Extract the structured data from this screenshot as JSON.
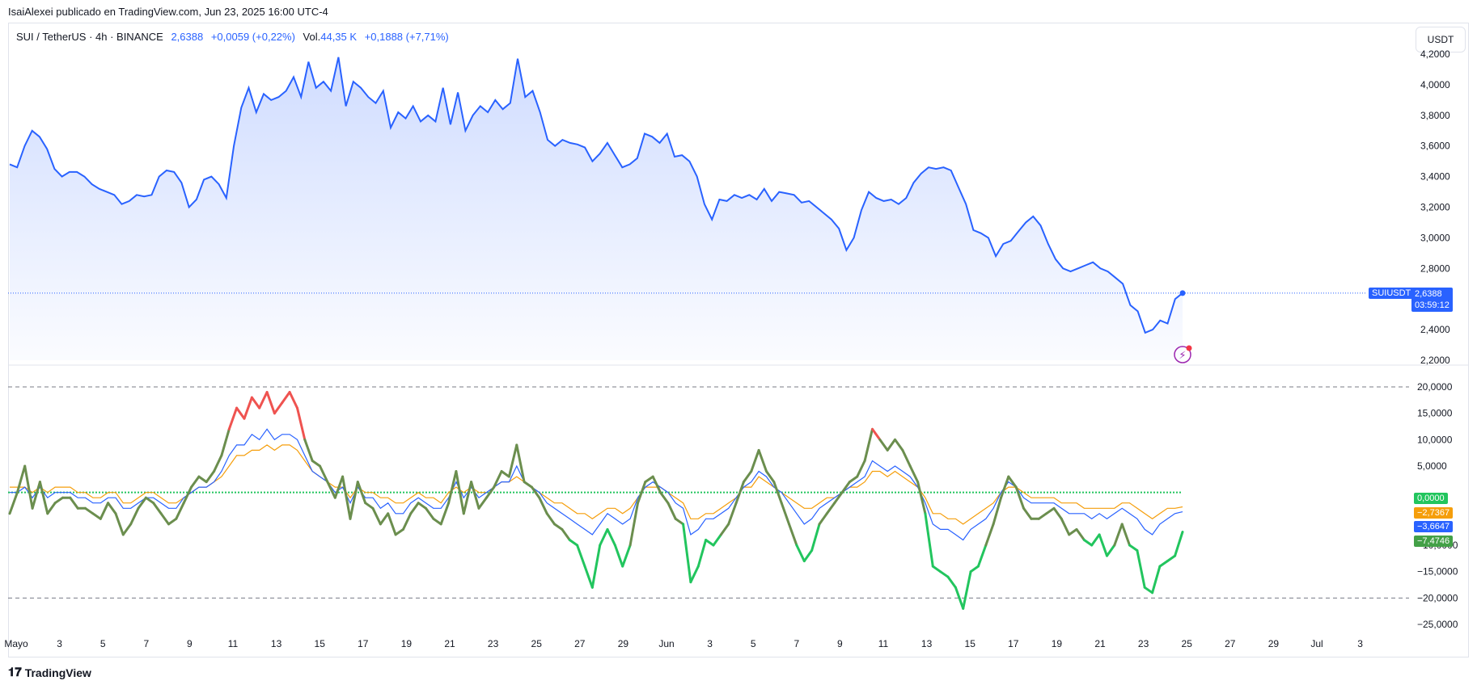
{
  "header": {
    "caption": "IsaiAlexei publicado en TradingView.com, Jun 23, 2025 16:00 UTC-4",
    "symbol": "SUI / TetherUS · 4h · BINANCE",
    "price": "2,6388",
    "change": "+0,0059 (+0,22%)",
    "vol_label": "Vol.",
    "vol_value": "44,35 K",
    "vol_change": "+0,1888 (+7,71%)",
    "currency": "USDT"
  },
  "price_badge": {
    "symbol": "SUIUSDT",
    "price": "2,6388",
    "countdown": "03:59:12"
  },
  "osc_badges": [
    {
      "value": "0,0000",
      "color": "#22c55e"
    },
    {
      "value": "−2,7367",
      "color": "#f59e0b"
    },
    {
      "value": "−3,6647",
      "color": "#2962ff"
    },
    {
      "value": "−7,4746",
      "color": "#43a047"
    }
  ],
  "footer": {
    "brand": "TradingView"
  },
  "chart_data": [
    {
      "type": "area",
      "series": [
        {
          "name": "SUIUSDT",
          "values": [
            3.48,
            3.46,
            3.6,
            3.7,
            3.66,
            3.58,
            3.45,
            3.4,
            3.43,
            3.43,
            3.4,
            3.35,
            3.32,
            3.3,
            3.28,
            3.22,
            3.24,
            3.28,
            3.27,
            3.28,
            3.4,
            3.44,
            3.43,
            3.36,
            3.2,
            3.25,
            3.38,
            3.4,
            3.35,
            3.26,
            3.6,
            3.85,
            3.98,
            3.82,
            3.94,
            3.9,
            3.92,
            3.96,
            4.05,
            3.92,
            4.15,
            3.98,
            4.02,
            3.96,
            4.18,
            3.86,
            4.02,
            3.98,
            3.92,
            3.88,
            3.96,
            3.72,
            3.82,
            3.78,
            3.86,
            3.76,
            3.8,
            3.76,
            3.98,
            3.74,
            3.95,
            3.7,
            3.8,
            3.86,
            3.82,
            3.9,
            3.84,
            3.88,
            4.17,
            3.92,
            3.96,
            3.82,
            3.64,
            3.6,
            3.64,
            3.62,
            3.61,
            3.59,
            3.5,
            3.55,
            3.62,
            3.54,
            3.46,
            3.48,
            3.52,
            3.68,
            3.66,
            3.62,
            3.68,
            3.53,
            3.54,
            3.5,
            3.4,
            3.22,
            3.12,
            3.25,
            3.24,
            3.28,
            3.26,
            3.28,
            3.25,
            3.32,
            3.24,
            3.3,
            3.29,
            3.28,
            3.23,
            3.24,
            3.2,
            3.16,
            3.12,
            3.06,
            2.92,
            3.0,
            3.18,
            3.3,
            3.26,
            3.24,
            3.25,
            3.22,
            3.26,
            3.36,
            3.42,
            3.46,
            3.45,
            3.46,
            3.44,
            3.33,
            3.22,
            3.05,
            3.03,
            3.0,
            2.88,
            2.96,
            2.98,
            3.04,
            3.1,
            3.14,
            3.08,
            2.96,
            2.86,
            2.8,
            2.78,
            2.8,
            2.82,
            2.84,
            2.8,
            2.78,
            2.74,
            2.7,
            2.56,
            2.52,
            2.38,
            2.4,
            2.46,
            2.44,
            2.6,
            2.6388
          ]
        }
      ],
      "x_labels": [
        "Mayo",
        "3",
        "5",
        "7",
        "9",
        "11",
        "13",
        "15",
        "17",
        "19",
        "21",
        "23",
        "25",
        "27",
        "29",
        "Jun",
        "3",
        "5",
        "7",
        "9",
        "11",
        "13",
        "15",
        "17",
        "19",
        "21",
        "23",
        "25",
        "27",
        "29",
        "Jul",
        "3"
      ],
      "y_ticks": [
        "2,2000",
        "2,4000",
        "2,6000",
        "2,8000",
        "3,0000",
        "3,2000",
        "3,4000",
        "3,6000",
        "3,8000",
        "4,0000",
        "4,2000"
      ],
      "ylim": [
        2.2,
        4.2
      ],
      "last_value": 2.6388
    },
    {
      "type": "line",
      "series": [
        {
          "name": "",
          "color": "#43a047",
          "values": [
            -4,
            0,
            5,
            -3,
            2,
            -4,
            -2,
            -1,
            -1,
            -3,
            -3,
            -4,
            -5,
            -2,
            -4,
            -8,
            -6,
            -3,
            -1,
            -2,
            -4,
            -6,
            -5,
            -2,
            1,
            3,
            2,
            4,
            7,
            12,
            16,
            14,
            18,
            16,
            19,
            15,
            17,
            19,
            16,
            10,
            6,
            5,
            2,
            -1,
            3,
            -5,
            2,
            -2,
            -3,
            -6,
            -4,
            -8,
            -7,
            -4,
            -2,
            -3,
            -5,
            -6,
            -2,
            4,
            -4,
            2,
            -3,
            -1,
            1,
            4,
            3,
            9,
            2,
            1,
            -1,
            -4,
            -6,
            -7,
            -9,
            -10,
            -14,
            -18,
            -10,
            -7,
            -10,
            -14,
            -10,
            -2,
            2,
            3,
            0,
            -2,
            -5,
            -6,
            -17,
            -14,
            -9,
            -10,
            -8,
            -6,
            -2,
            2,
            4,
            8,
            4,
            2,
            -2,
            -6,
            -10,
            -13,
            -11,
            -6,
            -4,
            -2,
            0,
            2,
            3,
            6,
            12,
            10,
            8,
            10,
            8,
            5,
            2,
            -4,
            -14,
            -15,
            -16,
            -18,
            -22,
            -15,
            -14,
            -10,
            -6,
            -1,
            3,
            1,
            -3,
            -5,
            -5,
            -4,
            -3,
            -5,
            -8,
            -7,
            -9,
            -10,
            -8,
            -12,
            -10,
            -6,
            -10,
            -11,
            -18,
            -19,
            -14,
            -13,
            -12,
            -7.4746
          ]
        },
        {
          "name": "",
          "color": "#2962ff",
          "values": [
            0,
            0,
            1,
            -1,
            1,
            -1,
            0,
            0,
            0,
            -1,
            -1,
            -2,
            -2,
            -1,
            -1,
            -3,
            -3,
            -2,
            -1,
            -1,
            -2,
            -3,
            -3,
            -1,
            0,
            1,
            1,
            2,
            4,
            7,
            9,
            9,
            11,
            10,
            12,
            10,
            11,
            11,
            10,
            7,
            4,
            3,
            2,
            0,
            1,
            -2,
            1,
            -1,
            -1,
            -3,
            -2,
            -4,
            -4,
            -2,
            -1,
            -2,
            -3,
            -3,
            -1,
            2,
            -1,
            1,
            -1,
            0,
            1,
            2,
            2,
            5,
            2,
            1,
            0,
            -2,
            -3,
            -4,
            -5,
            -6,
            -7,
            -8,
            -6,
            -4,
            -5,
            -6,
            -5,
            -1,
            1,
            2,
            1,
            0,
            -2,
            -3,
            -8,
            -7,
            -5,
            -5,
            -4,
            -3,
            -1,
            1,
            2,
            4,
            3,
            1,
            0,
            -2,
            -4,
            -6,
            -5,
            -3,
            -2,
            -1,
            0,
            1,
            2,
            3,
            6,
            5,
            4,
            5,
            4,
            3,
            1,
            -2,
            -6,
            -7,
            -7,
            -8,
            -9,
            -7,
            -6,
            -5,
            -3,
            0,
            2,
            1,
            -1,
            -2,
            -2,
            -2,
            -2,
            -3,
            -4,
            -4,
            -4,
            -5,
            -4,
            -5,
            -4,
            -3,
            -4,
            -5,
            -7,
            -8,
            -6,
            -5,
            -4,
            -3.6647
          ]
        },
        {
          "name": "",
          "color": "#f59e0b",
          "values": [
            1,
            1,
            1,
            0,
            1,
            0,
            1,
            1,
            1,
            0,
            0,
            -1,
            -1,
            0,
            0,
            -2,
            -2,
            -1,
            0,
            0,
            -1,
            -2,
            -2,
            -1,
            0,
            1,
            1,
            2,
            3,
            5,
            7,
            7,
            8,
            8,
            9,
            8,
            9,
            9,
            8,
            6,
            4,
            3,
            2,
            1,
            1,
            -1,
            1,
            0,
            0,
            -1,
            -1,
            -2,
            -2,
            -1,
            0,
            -1,
            -1,
            -2,
            0,
            1,
            0,
            1,
            0,
            0,
            1,
            2,
            2,
            3,
            2,
            1,
            0,
            -1,
            -2,
            -2,
            -3,
            -4,
            -4,
            -5,
            -4,
            -3,
            -3,
            -4,
            -3,
            -1,
            1,
            1,
            1,
            0,
            -1,
            -2,
            -5,
            -5,
            -4,
            -4,
            -3,
            -2,
            -1,
            1,
            1,
            3,
            2,
            1,
            0,
            -1,
            -2,
            -3,
            -3,
            -2,
            -1,
            -1,
            0,
            1,
            1,
            2,
            4,
            4,
            3,
            4,
            3,
            2,
            1,
            -1,
            -4,
            -4,
            -5,
            -5,
            -6,
            -5,
            -4,
            -3,
            -2,
            0,
            1,
            1,
            0,
            -1,
            -1,
            -1,
            -1,
            -2,
            -2,
            -2,
            -3,
            -3,
            -3,
            -3,
            -3,
            -2,
            -2,
            -3,
            -4,
            -5,
            -4,
            -3,
            -3,
            -2.7367
          ]
        }
      ],
      "y_ticks": [
        "−25,0000",
        "−20,0000",
        "−15,0000",
        "−10,0000",
        "5,0000",
        "10,0000",
        "15,0000",
        "20,0000"
      ],
      "ylim": [
        -25,
        20
      ],
      "levels": [
        20,
        0,
        -20
      ]
    }
  ]
}
